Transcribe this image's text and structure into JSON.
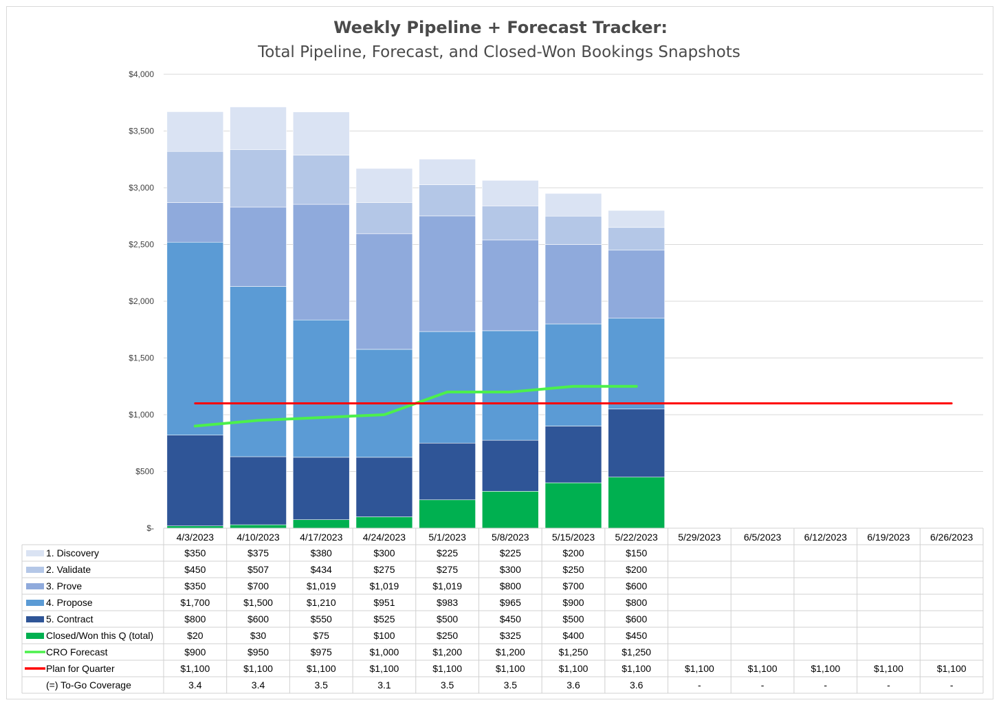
{
  "chart_data": {
    "type": "bar",
    "stacked": true,
    "title": "Weekly Pipeline + Forecast Tracker:",
    "subtitle": "Total Pipeline, Forecast, and Closed-Won Bookings Snapshots",
    "ylim": [
      0,
      4000
    ],
    "yticks": [
      "$-",
      "$500",
      "$1,000",
      "$1,500",
      "$2,000",
      "$2,500",
      "$3,000",
      "$3,500",
      "$4,000"
    ],
    "ytick_values": [
      0,
      500,
      1000,
      1500,
      2000,
      2500,
      3000,
      3500,
      4000
    ],
    "grid": true,
    "legend_placement": "data table below chart",
    "categories": [
      "4/3/2023",
      "4/10/2023",
      "4/17/2023",
      "4/24/2023",
      "5/1/2023",
      "5/8/2023",
      "5/15/2023",
      "5/22/2023",
      "5/29/2023",
      "6/5/2023",
      "6/12/2023",
      "6/19/2023",
      "6/26/2023"
    ],
    "bar_series_order_bottom_to_top": [
      5,
      4,
      3,
      2,
      1,
      0
    ],
    "rows": [
      {
        "name": "1. Discovery",
        "kind": "bar",
        "color": "#dae3f3",
        "values": [
          350,
          375,
          380,
          300,
          225,
          225,
          200,
          150,
          null,
          null,
          null,
          null,
          null
        ],
        "display": [
          "$350",
          "$375",
          "$380",
          "$300",
          "$225",
          "$225",
          "$200",
          "$150",
          "",
          "",
          "",
          "",
          ""
        ]
      },
      {
        "name": "2. Validate",
        "kind": "bar",
        "color": "#b4c7e7",
        "values": [
          450,
          507,
          434,
          275,
          275,
          300,
          250,
          200,
          null,
          null,
          null,
          null,
          null
        ],
        "display": [
          "$450",
          "$507",
          "$434",
          "$275",
          "$275",
          "$300",
          "$250",
          "$200",
          "",
          "",
          "",
          "",
          ""
        ]
      },
      {
        "name": "3. Prove",
        "kind": "bar",
        "color": "#8faadc",
        "values": [
          350,
          700,
          1019,
          1019,
          1019,
          800,
          700,
          600,
          null,
          null,
          null,
          null,
          null
        ],
        "display": [
          "$350",
          "$700",
          "$1,019",
          "$1,019",
          "$1,019",
          "$800",
          "$700",
          "$600",
          "",
          "",
          "",
          "",
          ""
        ]
      },
      {
        "name": "4. Propose",
        "kind": "bar",
        "color": "#5b9bd5",
        "values": [
          1700,
          1500,
          1210,
          951,
          983,
          965,
          900,
          800,
          null,
          null,
          null,
          null,
          null
        ],
        "display": [
          "$1,700",
          "$1,500",
          "$1,210",
          "$951",
          "$983",
          "$965",
          "$900",
          "$800",
          "",
          "",
          "",
          "",
          ""
        ]
      },
      {
        "name": "5. Contract",
        "kind": "bar",
        "color": "#2f5597",
        "values": [
          800,
          600,
          550,
          525,
          500,
          450,
          500,
          600,
          null,
          null,
          null,
          null,
          null
        ],
        "display": [
          "$800",
          "$600",
          "$550",
          "$525",
          "$500",
          "$450",
          "$500",
          "$600",
          "",
          "",
          "",
          "",
          ""
        ]
      },
      {
        "name": "Closed/Won this Q (total)",
        "kind": "bar",
        "color": "#00b050",
        "values": [
          20,
          30,
          75,
          100,
          250,
          325,
          400,
          450,
          null,
          null,
          null,
          null,
          null
        ],
        "display": [
          "$20",
          "$30",
          "$75",
          "$100",
          "$250",
          "$325",
          "$400",
          "$450",
          "",
          "",
          "",
          "",
          ""
        ]
      },
      {
        "name": "CRO Forecast",
        "kind": "line",
        "color": "#4cf04c",
        "values": [
          900,
          950,
          975,
          1000,
          1200,
          1200,
          1250,
          1250,
          null,
          null,
          null,
          null,
          null
        ],
        "display": [
          "$900",
          "$950",
          "$975",
          "$1,000",
          "$1,200",
          "$1,200",
          "$1,250",
          "$1,250",
          "",
          "",
          "",
          "",
          ""
        ]
      },
      {
        "name": "Plan for Quarter",
        "kind": "line",
        "color": "#ff0000",
        "values": [
          1100,
          1100,
          1100,
          1100,
          1100,
          1100,
          1100,
          1100,
          1100,
          1100,
          1100,
          1100,
          1100
        ],
        "display": [
          "$1,100",
          "$1,100",
          "$1,100",
          "$1,100",
          "$1,100",
          "$1,100",
          "$1,100",
          "$1,100",
          "$1,100",
          "$1,100",
          "$1,100",
          "$1,100",
          "$1,100"
        ]
      },
      {
        "name": "(=) To-Go Coverage",
        "kind": "none",
        "values": [
          3.4,
          3.4,
          3.5,
          3.1,
          3.5,
          3.5,
          3.6,
          3.6,
          null,
          null,
          null,
          null,
          null
        ],
        "display": [
          "3.4",
          "3.4",
          "3.5",
          "3.1",
          "3.5",
          "3.5",
          "3.6",
          "3.6",
          "-",
          "-",
          "-",
          "-",
          "-"
        ]
      }
    ]
  }
}
